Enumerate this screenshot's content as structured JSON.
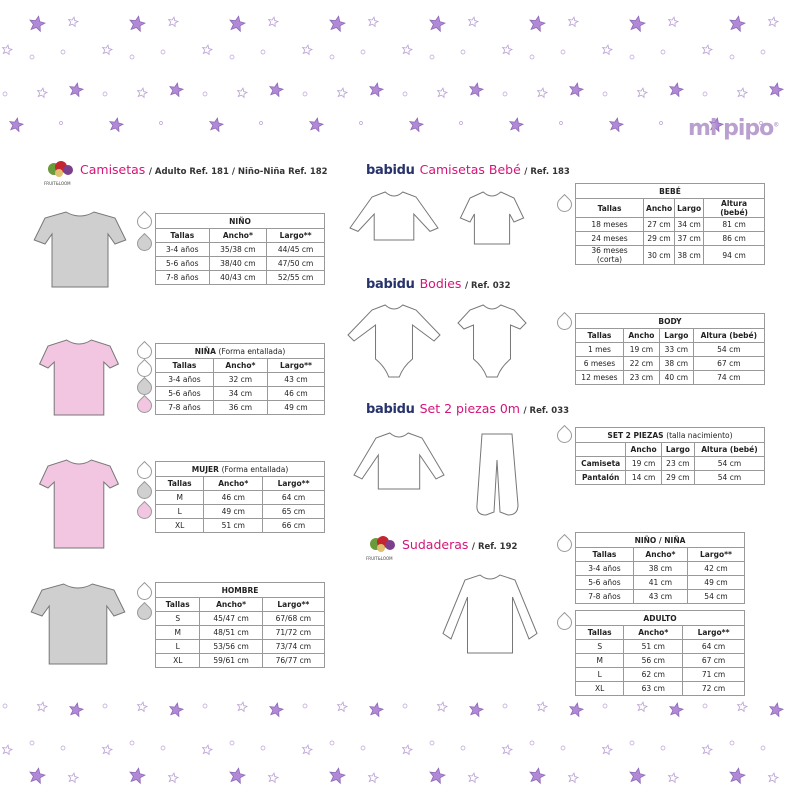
{
  "brand": "mi pipo",
  "colors": {
    "pink_title": "#d4147a",
    "star_purple": "#b08ad6",
    "babidu_blue": "#27336b",
    "gray_garment": "#cfcfcf",
    "pink_garment": "#f2c6e0"
  },
  "sections": {
    "camisetas": {
      "logo": "FRUIT&LOOM",
      "title": "Camisetas",
      "ref": "/ Adulto Ref. 181 / Niño-Niña Ref. 182"
    },
    "bebe": {
      "logo": "babidu",
      "title": "Camisetas Bebé",
      "ref": "/ Ref. 183"
    },
    "bodies": {
      "logo": "babidu",
      "title": "Bodies",
      "ref": "/ Ref. 032"
    },
    "set": {
      "logo": "babidu",
      "title": "Set 2 piezas 0m",
      "ref": "/ Ref. 033"
    },
    "sudaderas": {
      "logo": "FRUIT&LOOM",
      "title": "Sudaderas",
      "ref": "/ Ref. 192"
    }
  },
  "tables": {
    "nino": {
      "title": "NIÑO",
      "note": "",
      "columns": [
        "Tallas",
        "Ancho*",
        "Largo**"
      ],
      "rows": [
        [
          "3-4 años",
          "35/38 cm",
          "44/45 cm"
        ],
        [
          "5-6 años",
          "38/40 cm",
          "47/50 cm"
        ],
        [
          "7-8 años",
          "40/43 cm",
          "52/55 cm"
        ]
      ]
    },
    "nina": {
      "title": "NIÑA",
      "note": "(Forma entallada)",
      "columns": [
        "Tallas",
        "Ancho*",
        "Largo**"
      ],
      "rows": [
        [
          "3-4 años",
          "32 cm",
          "43 cm"
        ],
        [
          "5-6 años",
          "34 cm",
          "46 cm"
        ],
        [
          "7-8 años",
          "36 cm",
          "49 cm"
        ]
      ]
    },
    "mujer": {
      "title": "MUJER",
      "note": "(Forma entallada)",
      "columns": [
        "Tallas",
        "Ancho*",
        "Largo**"
      ],
      "rows": [
        [
          "M",
          "46 cm",
          "64 cm"
        ],
        [
          "L",
          "49 cm",
          "65 cm"
        ],
        [
          "XL",
          "51 cm",
          "66 cm"
        ]
      ]
    },
    "hombre": {
      "title": "HOMBRE",
      "note": "",
      "columns": [
        "Tallas",
        "Ancho*",
        "Largo**"
      ],
      "rows": [
        [
          "S",
          "45/47 cm",
          "67/68 cm"
        ],
        [
          "M",
          "48/51 cm",
          "71/72 cm"
        ],
        [
          "L",
          "53/56 cm",
          "73/74 cm"
        ],
        [
          "XL",
          "59/61 cm",
          "76/77 cm"
        ]
      ]
    },
    "bebe": {
      "title": "BEBÉ",
      "note": "",
      "columns": [
        "Tallas",
        "Ancho",
        "Largo",
        "Altura (bebé)"
      ],
      "rows": [
        [
          "18 meses",
          "27 cm",
          "34 cm",
          "81 cm"
        ],
        [
          "24 meses",
          "29 cm",
          "37 cm",
          "86 cm"
        ],
        [
          "36 meses (corta)",
          "30 cm",
          "38 cm",
          "94 cm"
        ]
      ]
    },
    "body": {
      "title": "BODY",
      "note": "",
      "columns": [
        "Tallas",
        "Ancho",
        "Largo",
        "Altura (bebé)"
      ],
      "rows": [
        [
          "1 mes",
          "19 cm",
          "33 cm",
          "54 cm"
        ],
        [
          "6 meses",
          "22 cm",
          "38 cm",
          "67 cm"
        ],
        [
          "12 meses",
          "23 cm",
          "40 cm",
          "74 cm"
        ]
      ]
    },
    "set": {
      "title": "SET 2 PIEZAS",
      "note": "(talla nacimiento)",
      "columns": [
        "",
        "Ancho",
        "Largo",
        "Altura (bebé)"
      ],
      "rows": [
        [
          "Camiseta",
          "19 cm",
          "23 cm",
          "54 cm"
        ],
        [
          "Pantalón",
          "14 cm",
          "29 cm",
          "54 cm"
        ]
      ]
    },
    "sud_nino": {
      "title": "NIÑO / NIÑA",
      "note": "",
      "columns": [
        "Tallas",
        "Ancho*",
        "Largo**"
      ],
      "rows": [
        [
          "3-4 años",
          "38 cm",
          "42 cm"
        ],
        [
          "5-6 años",
          "41 cm",
          "49 cm"
        ],
        [
          "7-8 años",
          "43 cm",
          "54 cm"
        ]
      ]
    },
    "sud_adulto": {
      "title": "ADULTO",
      "note": "",
      "columns": [
        "Tallas",
        "Ancho*",
        "Largo**"
      ],
      "rows": [
        [
          "S",
          "51 cm",
          "64 cm"
        ],
        [
          "M",
          "56 cm",
          "67 cm"
        ],
        [
          "L",
          "62 cm",
          "71 cm"
        ],
        [
          "XL",
          "63 cm",
          "72 cm"
        ]
      ]
    }
  }
}
